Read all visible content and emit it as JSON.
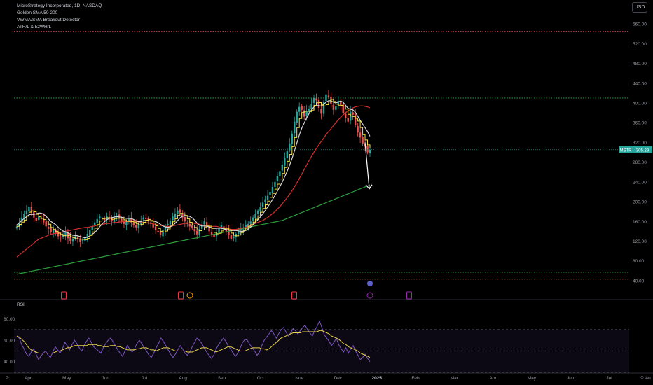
{
  "legend": {
    "symbol_line": "MicroStrategy Incorporated, 1D, NASDAQ",
    "indicator_1": "Golden SMA 50 200",
    "indicator_2": "VWMA/SMA Breakout Detector",
    "indicator_3": "ATH/L & 52WH/L"
  },
  "currency_button": "USD",
  "price_badge": {
    "ticker": "MSTR",
    "value": "305.29"
  },
  "rsi": {
    "title": "RSI",
    "ticks": [
      "80.00",
      "60.00",
      "40.00"
    ],
    "series": [
      64,
      62,
      56,
      52,
      47,
      45,
      49,
      52,
      47,
      42,
      45,
      48,
      50,
      46,
      44,
      49,
      54,
      51,
      48,
      52,
      58,
      55,
      51,
      56,
      60,
      57,
      53,
      50,
      55,
      59,
      62,
      58,
      54,
      52,
      50,
      48,
      53,
      57,
      60,
      62,
      59,
      55,
      51,
      48,
      45,
      50,
      55,
      52,
      49,
      52,
      57,
      60,
      57,
      53,
      50,
      46,
      44,
      48,
      53,
      57,
      62,
      59,
      55,
      51,
      47,
      44,
      47,
      51,
      55,
      52,
      48,
      46,
      49,
      54,
      58,
      62,
      60,
      57,
      53,
      49,
      46,
      43,
      46,
      52,
      56,
      59,
      62,
      59,
      55,
      52,
      48,
      45,
      48,
      53,
      58,
      61,
      60,
      56,
      53,
      50,
      46,
      49,
      55,
      60,
      63,
      66,
      69,
      66,
      62,
      66,
      70,
      72,
      68,
      64,
      67,
      71,
      69,
      66,
      69,
      72,
      74,
      70,
      67,
      64,
      69,
      73,
      78,
      72,
      65,
      62,
      59,
      55,
      58,
      62,
      56,
      52,
      49,
      53,
      48,
      52,
      55,
      50,
      46,
      42,
      44,
      47,
      43,
      40
    ],
    "signal": [
      64,
      63,
      61,
      59,
      56,
      53,
      51,
      50,
      49,
      48,
      48,
      48,
      48,
      48,
      48,
      48,
      49,
      50,
      50,
      51,
      52,
      53,
      53,
      54,
      55,
      55,
      55,
      55,
      55,
      55,
      56,
      56,
      56,
      56,
      55,
      55,
      54,
      54,
      54,
      55,
      55,
      55,
      54,
      54,
      53,
      52,
      51,
      51,
      51,
      51,
      52,
      52,
      53,
      53,
      53,
      52,
      51,
      51,
      50,
      51,
      52,
      53,
      53,
      53,
      52,
      51,
      50,
      50,
      50,
      50,
      50,
      49,
      49,
      49,
      50,
      51,
      52,
      53,
      53,
      53,
      52,
      51,
      50,
      49,
      50,
      51,
      52,
      53,
      54,
      54,
      53,
      52,
      51,
      50,
      50,
      50,
      51,
      52,
      53,
      53,
      53,
      53,
      52,
      52,
      51,
      52,
      54,
      56,
      58,
      60,
      62,
      63,
      64,
      65,
      66,
      67,
      67,
      67,
      67,
      68,
      68,
      68,
      68,
      68,
      68,
      68,
      69,
      69,
      68,
      67,
      66,
      64,
      63,
      62,
      61,
      59,
      57,
      56,
      54,
      53,
      52,
      51,
      50,
      48,
      47,
      46,
      45,
      44
    ],
    "band": [
      70,
      30
    ],
    "mid": 50
  },
  "chart_data": {
    "type": "candlestick",
    "title": "MicroStrategy Incorporated, 1D, NASDAQ",
    "ylim": [
      30,
      580
    ],
    "y_ticks": [
      "560.00",
      "520.00",
      "480.00",
      "440.00",
      "400.00",
      "360.00",
      "320.00",
      "280.00",
      "240.00",
      "200.00",
      "160.00",
      "120.00",
      "80.00",
      "40.00"
    ],
    "x_ticks": [
      "Apr",
      "May",
      "Jun",
      "Jul",
      "Aug",
      "Sep",
      "Oct",
      "Nov",
      "Dec",
      "2025",
      "Feb",
      "Mar",
      "Apr",
      "May",
      "Jun",
      "Jul",
      "Au"
    ],
    "last_price": 305.29,
    "reference_levels": [
      {
        "value": 544,
        "color": "#e04c4c"
      },
      {
        "value": 410,
        "color": "#2bb34a"
      },
      {
        "value": 57,
        "color": "#2bb34a"
      },
      {
        "value": 43,
        "color": "#e04c4c"
      }
    ],
    "closes": [
      150,
      158,
      168,
      175,
      182,
      190,
      178,
      168,
      162,
      170,
      165,
      158,
      150,
      145,
      138,
      142,
      135,
      130,
      128,
      132,
      138,
      126,
      120,
      124,
      130,
      124,
      118,
      122,
      128,
      135,
      142,
      150,
      158,
      165,
      170,
      168,
      162,
      170,
      165,
      160,
      168,
      172,
      166,
      160,
      155,
      160,
      165,
      158,
      152,
      148,
      155,
      162,
      168,
      165,
      160,
      155,
      148,
      142,
      138,
      132,
      142,
      150,
      155,
      162,
      170,
      175,
      182,
      178,
      168,
      160,
      155,
      150,
      146,
      140,
      134,
      145,
      152,
      160,
      150,
      140,
      133,
      128,
      138,
      145,
      152,
      148,
      140,
      133,
      125,
      130,
      135,
      140,
      145,
      148,
      152,
      155,
      160,
      168,
      175,
      182,
      190,
      198,
      205,
      212,
      220,
      230,
      240,
      252,
      262,
      275,
      288,
      302,
      318,
      338,
      362,
      382,
      392,
      386,
      372,
      384,
      388,
      398,
      410,
      405,
      390,
      378,
      402,
      416,
      412,
      398,
      386,
      394,
      404,
      396,
      380,
      370,
      362,
      382,
      376,
      355,
      340,
      330,
      318,
      312,
      300,
      305
    ],
    "sma_50": [
      88,
      92,
      96,
      100,
      104,
      108,
      112,
      116,
      120,
      124,
      126,
      128,
      130,
      132,
      134,
      135,
      136,
      137,
      138,
      139,
      140,
      141,
      142,
      143,
      144,
      145,
      146,
      147,
      148,
      148,
      149,
      150,
      151,
      152,
      153,
      154,
      155,
      156,
      156,
      157,
      158,
      158,
      159,
      159,
      160,
      160,
      160,
      160,
      160,
      160,
      159,
      159,
      158,
      158,
      157,
      156,
      155,
      154,
      153,
      152,
      151,
      150,
      150,
      150,
      151,
      152,
      153,
      154,
      155,
      156,
      157,
      157,
      157,
      156,
      155,
      154,
      153,
      152,
      151,
      150,
      150,
      150,
      150,
      149,
      148,
      147,
      146,
      145,
      144,
      144,
      144,
      145,
      146,
      147,
      148,
      150,
      152,
      154,
      156,
      158,
      160,
      162,
      165,
      168,
      172,
      176,
      180,
      185,
      190,
      196,
      202,
      208,
      215,
      222,
      230,
      238,
      247,
      256,
      265,
      274,
      283,
      292,
      300,
      308,
      315,
      322,
      329,
      336,
      342,
      348,
      354,
      360,
      366,
      371,
      376,
      380,
      384,
      387,
      390,
      392,
      393,
      394,
      394,
      393,
      392,
      390
    ],
    "sma_200": [
      53,
      54,
      55,
      56,
      57,
      58,
      59,
      60,
      61,
      62,
      63,
      64,
      65,
      66,
      67,
      68,
      69,
      70,
      71,
      72,
      73,
      74,
      75,
      76,
      77,
      78,
      79,
      80,
      81,
      82,
      83,
      84,
      85,
      86,
      87,
      88,
      89,
      90,
      91,
      92,
      93,
      94,
      95,
      96,
      97,
      98,
      99,
      100,
      101,
      102,
      103,
      104,
      105,
      106,
      107,
      108,
      109,
      110,
      111,
      112,
      113,
      114,
      115,
      116,
      117,
      118,
      119,
      120,
      121,
      122,
      123,
      124,
      125,
      126,
      127,
      128,
      129,
      130,
      131,
      132,
      133,
      134,
      135,
      136,
      137,
      138,
      139,
      140,
      141,
      142,
      143,
      144,
      145,
      146,
      147,
      148,
      149,
      150,
      151,
      152,
      153,
      154,
      155,
      156,
      157,
      158,
      159,
      160,
      161,
      162,
      164,
      166,
      168,
      170,
      172,
      174,
      176,
      178,
      180,
      182,
      184,
      186,
      188,
      190,
      192,
      194,
      196,
      198,
      200,
      202,
      204,
      206,
      208,
      210,
      212,
      214,
      216,
      218,
      220,
      222,
      224,
      226,
      228,
      230,
      232,
      234
    ],
    "annotation_arrow": {
      "from_value": 320,
      "to_value": 226
    }
  }
}
